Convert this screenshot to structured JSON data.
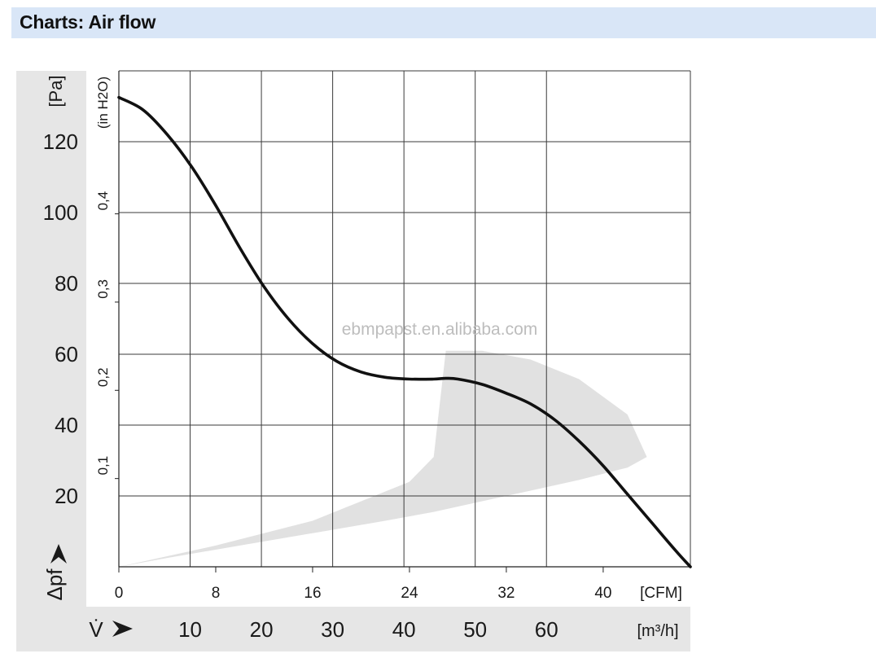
{
  "header": {
    "title": "Charts: Air flow"
  },
  "watermark": "ebmpapst.en.alibaba.com",
  "colors": {
    "header_bg": "#d9e6f7",
    "panel_gray": "#e6e6e6",
    "curve": "#111111",
    "region": "#d9d9d9"
  },
  "chart_data": {
    "type": "line",
    "title": "",
    "xlabel": "V̇",
    "x_unit": "CFM",
    "x_ticks": [
      0,
      8,
      16,
      24,
      32,
      40
    ],
    "xlim": [
      0,
      47.2
    ],
    "x2_unit": "m³/h",
    "x2_ticks": [
      10,
      20,
      30,
      40,
      50,
      60
    ],
    "ylabel": "Δpf",
    "y_unit": "Pa",
    "y_ticks": [
      20,
      40,
      60,
      80,
      100,
      120
    ],
    "ylim": [
      0,
      140
    ],
    "y2_unit": "(in H2O)",
    "y2_ticks": [
      "0,1",
      "0,2",
      "0,3",
      "0,4"
    ],
    "y2_values": [
      0.1,
      0.2,
      0.3,
      0.4
    ],
    "grid": true,
    "series": [
      {
        "x": [
          0,
          2,
          4,
          6,
          8,
          10,
          12,
          14,
          16,
          18,
          20,
          22,
          24,
          26,
          27,
          28,
          30,
          32,
          34,
          36,
          38,
          40,
          42,
          44,
          46,
          47.2
        ],
        "y": [
          132.5,
          129,
          122,
          113,
          102,
          90,
          79,
          70,
          63,
          58,
          55,
          53.5,
          53,
          53,
          53.2,
          53,
          51.5,
          49,
          46,
          41.5,
          35.5,
          28.5,
          20.5,
          12.5,
          4.5,
          0
        ]
      }
    ],
    "operating_region": {
      "x": [
        0,
        8,
        16,
        24,
        26,
        27,
        30,
        34,
        38,
        42,
        43.6,
        42,
        38,
        34,
        30,
        26,
        22,
        16,
        10,
        4,
        0
      ],
      "y": [
        0,
        6,
        13,
        24,
        31,
        61,
        61,
        58.5,
        53,
        43,
        31,
        28,
        24.5,
        21.5,
        18.5,
        15.5,
        13,
        9.5,
        6,
        2.5,
        0
      ]
    }
  }
}
